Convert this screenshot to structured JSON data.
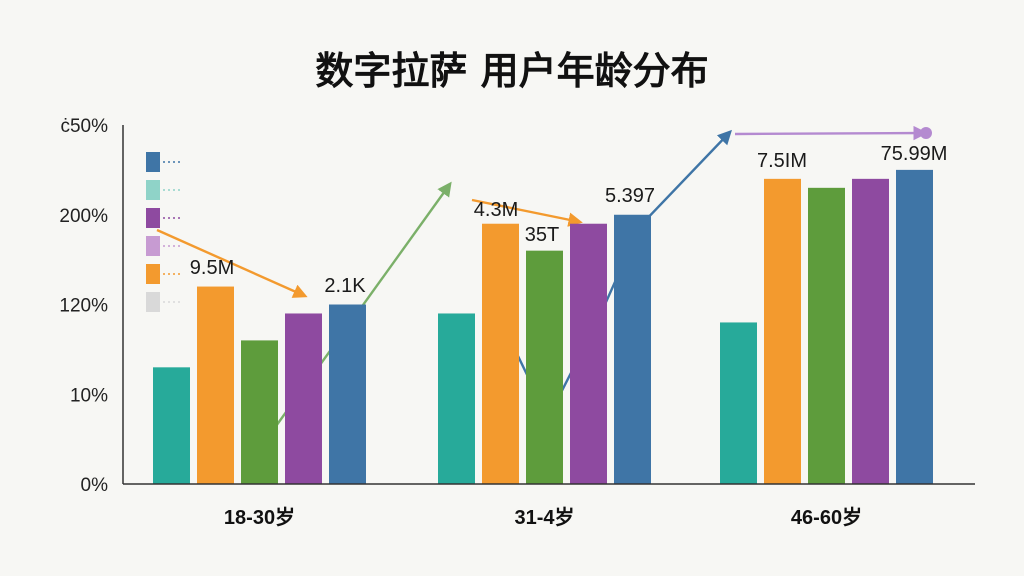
{
  "chart_data": {
    "type": "bar",
    "title": "数字拉萨 用户年龄分布",
    "categories": [
      "18-30岁",
      "31-4岁",
      "46-60岁"
    ],
    "y_ticks": [
      "0%",
      "10%",
      "120%",
      "200%",
      "ċ50%"
    ],
    "series": [
      {
        "color": "#27aa9a",
        "values": [
          13,
          19,
          18
        ]
      },
      {
        "color": "#f39a2e",
        "values": [
          22,
          29,
          34
        ]
      },
      {
        "color": "#5e9c3c",
        "values": [
          16,
          26,
          33
        ]
      },
      {
        "color": "#8e4aa0",
        "values": [
          19,
          29,
          34
        ]
      },
      {
        "color": "#3f75a6",
        "values": [
          20,
          30,
          35
        ]
      }
    ],
    "data_labels": [
      "9.5M",
      "2.1K",
      "4.3M",
      "35T",
      "5.397",
      "7.5IM",
      "75.99M"
    ],
    "legend_colors": [
      "#3f75a6",
      "#8fd3c8",
      "#8e4aa0",
      "#c79bd2",
      "#f39a2e",
      "#d9d9d9"
    ],
    "ylim": [
      0,
      40
    ],
    "grid": false,
    "legend_position": "top-left"
  }
}
